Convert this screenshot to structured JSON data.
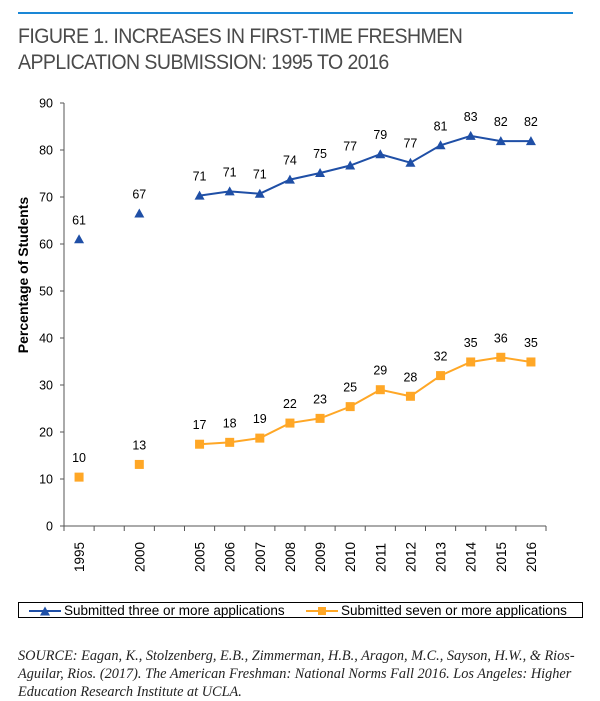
{
  "figure": {
    "title_line1": "FIGURE 1. INCREASES IN FIRST-TIME FRESHMEN",
    "title_line2": "APPLICATION SUBMISSION: 1995 TO 2016",
    "accent_color": "#1a87d6"
  },
  "chart_data": {
    "type": "line",
    "title": "FIGURE 1. INCREASES IN FIRST-TIME FRESHMEN APPLICATION SUBMISSION: 1995 TO 2016",
    "xlabel": "",
    "ylabel": "Percentage of Students",
    "ylim": [
      0,
      90
    ],
    "yticks": [
      0,
      10,
      20,
      30,
      40,
      50,
      60,
      70,
      80,
      90
    ],
    "x_slots": [
      "1995",
      "",
      "2000",
      "",
      "2005",
      "2006",
      "2007",
      "2008",
      "2009",
      "2010",
      "2011",
      "2012",
      "2013",
      "2014",
      "2015",
      "2016"
    ],
    "categories": [
      "1995",
      "2000",
      "2005",
      "2006",
      "2007",
      "2008",
      "2009",
      "2010",
      "2011",
      "2012",
      "2013",
      "2014",
      "2015",
      "2016"
    ],
    "grid": false,
    "legend_position": "bottom",
    "series": [
      {
        "name": "Submitted three or more applications",
        "color": "#1f4fa6",
        "marker": "triangle",
        "values": [
          61,
          67,
          71,
          71,
          71,
          74,
          75,
          77,
          79,
          77,
          81,
          83,
          82,
          82
        ],
        "plotted": [
          61,
          66.5,
          70.3,
          71.2,
          70.7,
          73.7,
          75.1,
          76.7,
          79.1,
          77.3,
          81,
          83,
          81.9,
          81.9
        ],
        "connected_from": "2005"
      },
      {
        "name": "Submitted seven or more applications",
        "color": "#ffa726",
        "marker": "square",
        "values": [
          10,
          13,
          17,
          18,
          19,
          22,
          23,
          25,
          29,
          28,
          32,
          35,
          36,
          35
        ],
        "plotted": [
          10.4,
          13.1,
          17.4,
          17.8,
          18.7,
          21.9,
          22.9,
          25.4,
          29,
          27.6,
          32,
          34.9,
          35.9,
          34.9
        ],
        "connected_from": "2005"
      }
    ]
  },
  "source": {
    "text": "SOURCE: Eagan, K., Stolzenberg, E.B., Zimmerman, H.B., Aragon, M.C., Sayson, H.W., & Rios-Aguilar, Rios. (2017). The American Freshman: National Norms Fall 2016. Los Angeles: Higher Education Research Institute at UCLA."
  }
}
